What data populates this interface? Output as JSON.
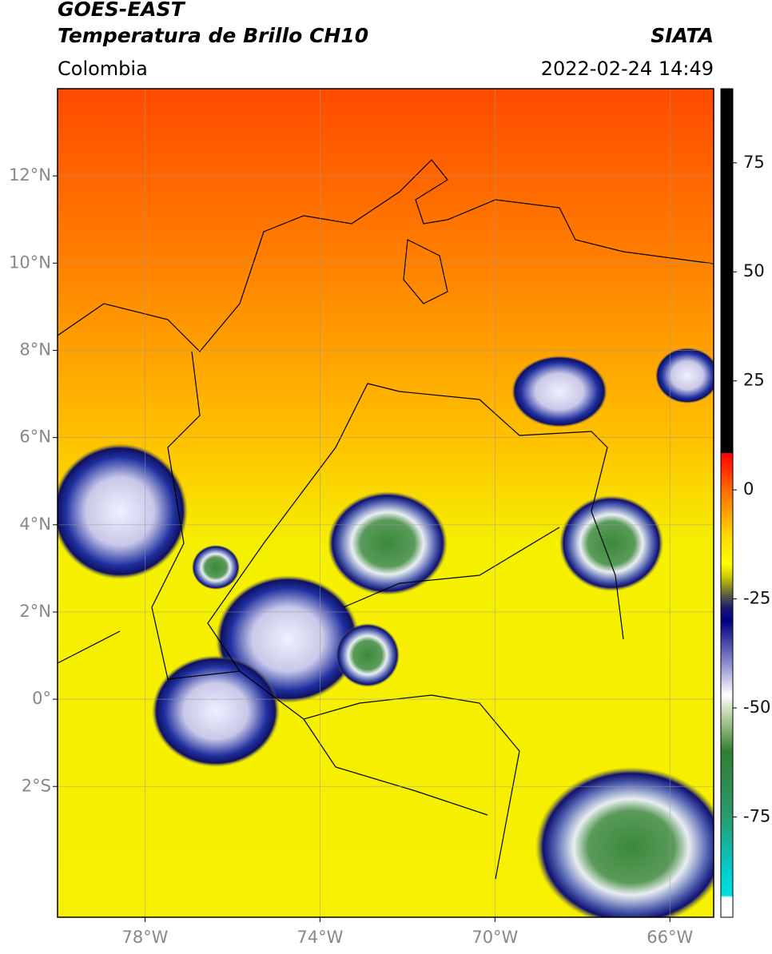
{
  "chart_data": {
    "type": "map",
    "title": "GOES-EAST",
    "subtitle": "Temperatura de Brillo CH10",
    "source": "SIATA",
    "region": "Colombia",
    "datetime": "2022-02-24 14:49",
    "xlim": [
      -80,
      -65
    ],
    "ylim": [
      -5,
      14
    ],
    "xticks": [
      {
        "value": -78,
        "label": "78°W"
      },
      {
        "value": -74,
        "label": "74°W"
      },
      {
        "value": -70,
        "label": "70°W"
      },
      {
        "value": -66,
        "label": "66°W"
      }
    ],
    "yticks": [
      {
        "value": 12,
        "label": "12°N"
      },
      {
        "value": 10,
        "label": "10°N"
      },
      {
        "value": 8,
        "label": "8°N"
      },
      {
        "value": 6,
        "label": "6°N"
      },
      {
        "value": 4,
        "label": "4°N"
      },
      {
        "value": 2,
        "label": "2°N"
      },
      {
        "value": 0,
        "label": "0°"
      },
      {
        "value": -2,
        "label": "2°S"
      }
    ],
    "grid": true,
    "colorbar": {
      "lim": [
        -98,
        92
      ],
      "ticks": [
        75,
        50,
        25,
        0,
        -25,
        -50,
        -75
      ],
      "stops": [
        {
          "value": 92,
          "color": "#000000"
        },
        {
          "value": 8.5,
          "color": "#000000"
        },
        {
          "value": 8.4,
          "color": "#ff0000"
        },
        {
          "value": 0,
          "color": "#ff6a00"
        },
        {
          "value": -10,
          "color": "#ffd400"
        },
        {
          "value": -17,
          "color": "#ffff00"
        },
        {
          "value": -20,
          "color": "#c8c800"
        },
        {
          "value": -24,
          "color": "#606040"
        },
        {
          "value": -27,
          "color": "#1a1a70"
        },
        {
          "value": -30,
          "color": "#000080"
        },
        {
          "value": -40,
          "color": "#9090d0"
        },
        {
          "value": -47,
          "color": "#ffffff"
        },
        {
          "value": -52,
          "color": "#b8d0a0"
        },
        {
          "value": -60,
          "color": "#308030"
        },
        {
          "value": -75,
          "color": "#2a9a70"
        },
        {
          "value": -88,
          "color": "#00d0d0"
        },
        {
          "value": -93,
          "color": "#00e0e0"
        },
        {
          "value": -93.5,
          "color": "#ffffff"
        },
        {
          "value": -98,
          "color": "#ffffff"
        }
      ]
    }
  }
}
